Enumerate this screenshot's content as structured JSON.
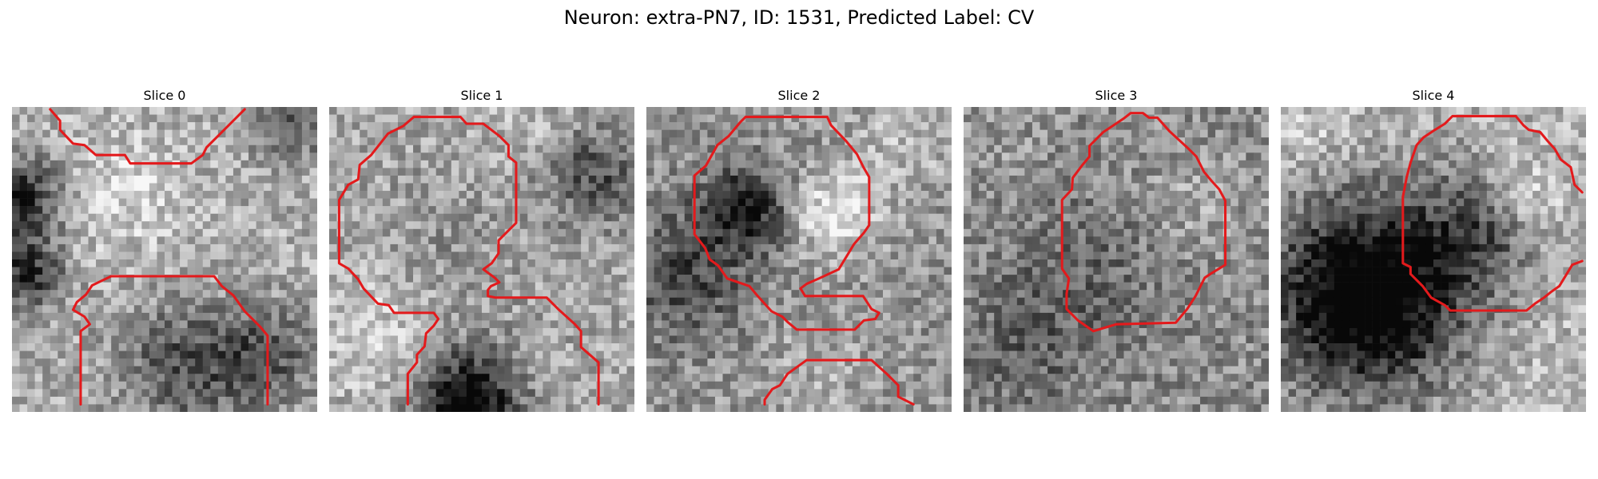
{
  "figure": {
    "title": "Neuron: extra-PN7, ID: 1531, Predicted Label: CV",
    "contour_color": "#e31a1c"
  },
  "slices": [
    {
      "title": "Slice 0"
    },
    {
      "title": "Slice 1"
    },
    {
      "title": "Slice 2"
    },
    {
      "title": "Slice 3"
    },
    {
      "title": "Slice 4"
    }
  ]
}
